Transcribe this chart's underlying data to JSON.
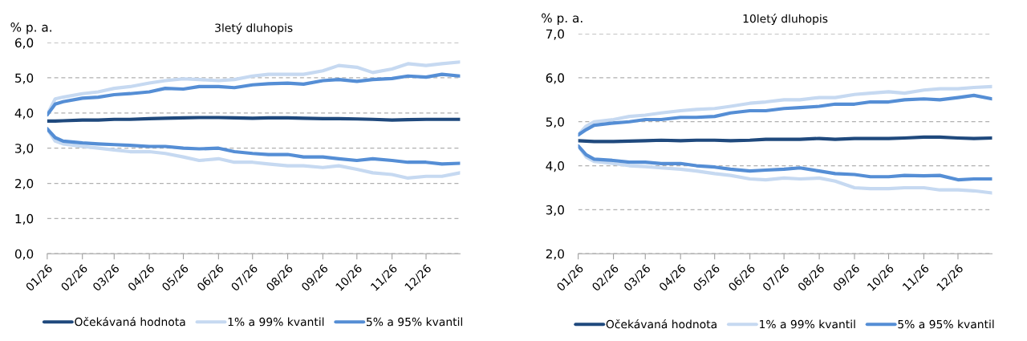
{
  "chart_data": [
    {
      "type": "line",
      "title": "3letý dluhopis",
      "ylabel": "% p. a.",
      "x": [
        "2026-01-01",
        "2026-01-08",
        "2026-01-15",
        "2026-02-01",
        "2026-02-15",
        "2026-03-01",
        "2026-03-15",
        "2026-04-01",
        "2026-04-15",
        "2026-05-01",
        "2026-05-15",
        "2026-06-01",
        "2026-06-15",
        "2026-07-01",
        "2026-07-15",
        "2026-08-01",
        "2026-08-15",
        "2026-09-01",
        "2026-09-15",
        "2026-10-01",
        "2026-10-15",
        "2026-11-01",
        "2026-11-15",
        "2026-12-01",
        "2026-12-15",
        "2026-12-31"
      ],
      "series": [
        {
          "name": "Očekávaná hodnota",
          "color": "#1f497d",
          "values": [
            3.77,
            3.77,
            3.78,
            3.8,
            3.8,
            3.82,
            3.82,
            3.84,
            3.85,
            3.86,
            3.87,
            3.87,
            3.86,
            3.85,
            3.86,
            3.86,
            3.85,
            3.84,
            3.84,
            3.83,
            3.82,
            3.8,
            3.81,
            3.82,
            3.82,
            3.82
          ]
        },
        {
          "name": "1% a 99% kvantil",
          "color": "#c6d9f1",
          "values": [
            3.95,
            4.4,
            4.45,
            4.55,
            4.6,
            4.7,
            4.75,
            4.85,
            4.92,
            4.97,
            4.95,
            4.92,
            4.95,
            5.05,
            5.1,
            5.1,
            5.1,
            5.2,
            5.35,
            5.3,
            5.15,
            5.25,
            5.4,
            5.35,
            5.4,
            5.45
          ]
        },
        {
          "color": "#c6d9f1",
          "values": [
            3.55,
            3.2,
            3.12,
            3.05,
            3.0,
            2.95,
            2.9,
            2.9,
            2.85,
            2.75,
            2.65,
            2.7,
            2.6,
            2.6,
            2.55,
            2.5,
            2.5,
            2.45,
            2.5,
            2.4,
            2.3,
            2.25,
            2.15,
            2.2,
            2.2,
            2.3
          ]
        },
        {
          "name": "5% a 95% kvantil",
          "color": "#558ed5",
          "values": [
            3.95,
            4.25,
            4.32,
            4.42,
            4.45,
            4.52,
            4.55,
            4.6,
            4.7,
            4.68,
            4.75,
            4.75,
            4.72,
            4.8,
            4.83,
            4.85,
            4.82,
            4.92,
            4.95,
            4.9,
            4.95,
            4.98,
            5.05,
            5.02,
            5.1,
            5.05
          ]
        },
        {
          "color": "#558ed5",
          "values": [
            3.55,
            3.3,
            3.2,
            3.15,
            3.12,
            3.1,
            3.08,
            3.05,
            3.05,
            3.0,
            2.98,
            3.0,
            2.9,
            2.85,
            2.82,
            2.82,
            2.75,
            2.75,
            2.7,
            2.65,
            2.7,
            2.65,
            2.6,
            2.6,
            2.55,
            2.57
          ]
        }
      ],
      "xlim": [
        "2026-01-01",
        "2026-12-31"
      ],
      "xticks": [
        {
          "value": "2026-01-01",
          "label": "01/26"
        },
        {
          "value": "2026-02-01",
          "label": "02/26"
        },
        {
          "value": "2026-03-01",
          "label": "03/26"
        },
        {
          "value": "2026-04-01",
          "label": "04/26"
        },
        {
          "value": "2026-05-01",
          "label": "05/26"
        },
        {
          "value": "2026-06-01",
          "label": "06/26"
        },
        {
          "value": "2026-07-01",
          "label": "07/26"
        },
        {
          "value": "2026-08-01",
          "label": "08/26"
        },
        {
          "value": "2026-09-01",
          "label": "09/26"
        },
        {
          "value": "2026-10-01",
          "label": "10/26"
        },
        {
          "value": "2026-11-01",
          "label": "11/26"
        },
        {
          "value": "2026-12-01",
          "label": "12/26"
        }
      ],
      "ylim": [
        0,
        6
      ],
      "yticks": [
        {
          "value": 0,
          "label": "0,0"
        },
        {
          "value": 1,
          "label": "1,0"
        },
        {
          "value": 2,
          "label": "2,0"
        },
        {
          "value": 3,
          "label": "3,0"
        },
        {
          "value": 4,
          "label": "4,0"
        },
        {
          "value": 5,
          "label": "5,0"
        },
        {
          "value": 6,
          "label": "6,0"
        }
      ],
      "grid": "y",
      "legend": "bottom",
      "marker": "none",
      "line_style": "solid"
    },
    {
      "type": "line",
      "title": "10letý dluhopis",
      "ylabel": "% p. a.",
      "x": [
        "2026-01-01",
        "2026-01-08",
        "2026-01-15",
        "2026-02-01",
        "2026-02-15",
        "2026-03-01",
        "2026-03-15",
        "2026-04-01",
        "2026-04-15",
        "2026-05-01",
        "2026-05-15",
        "2026-06-01",
        "2026-06-15",
        "2026-07-01",
        "2026-07-15",
        "2026-08-01",
        "2026-08-15",
        "2026-09-01",
        "2026-09-15",
        "2026-10-01",
        "2026-10-15",
        "2026-11-01",
        "2026-11-15",
        "2026-12-01",
        "2026-12-15",
        "2026-12-31"
      ],
      "series": [
        {
          "name": "Očekávaná hodnota",
          "color": "#1f497d",
          "values": [
            4.57,
            4.56,
            4.55,
            4.55,
            4.56,
            4.57,
            4.58,
            4.57,
            4.58,
            4.58,
            4.57,
            4.58,
            4.6,
            4.6,
            4.6,
            4.62,
            4.6,
            4.62,
            4.62,
            4.62,
            4.63,
            4.65,
            4.65,
            4.63,
            4.62,
            4.63
          ]
        },
        {
          "name": "1% a 99% kvantil",
          "color": "#c6d9f1",
          "values": [
            4.7,
            4.9,
            5.0,
            5.05,
            5.12,
            5.15,
            5.2,
            5.25,
            5.28,
            5.3,
            5.35,
            5.42,
            5.45,
            5.5,
            5.5,
            5.55,
            5.55,
            5.62,
            5.65,
            5.68,
            5.65,
            5.72,
            5.75,
            5.75,
            5.78,
            5.8
          ]
        },
        {
          "color": "#c6d9f1",
          "values": [
            4.45,
            4.2,
            4.1,
            4.05,
            4.0,
            3.98,
            3.95,
            3.92,
            3.88,
            3.82,
            3.78,
            3.7,
            3.68,
            3.72,
            3.7,
            3.72,
            3.65,
            3.5,
            3.48,
            3.48,
            3.5,
            3.5,
            3.45,
            3.45,
            3.43,
            3.38
          ]
        },
        {
          "name": "5% a 95% kvantil",
          "color": "#558ed5",
          "values": [
            4.7,
            4.82,
            4.92,
            4.97,
            5.0,
            5.05,
            5.05,
            5.1,
            5.1,
            5.12,
            5.2,
            5.25,
            5.25,
            5.3,
            5.32,
            5.35,
            5.4,
            5.4,
            5.45,
            5.45,
            5.5,
            5.52,
            5.5,
            5.55,
            5.6,
            5.52
          ]
        },
        {
          "color": "#558ed5",
          "values": [
            4.45,
            4.25,
            4.15,
            4.12,
            4.08,
            4.08,
            4.05,
            4.05,
            4.0,
            3.97,
            3.92,
            3.88,
            3.9,
            3.92,
            3.95,
            3.88,
            3.82,
            3.8,
            3.75,
            3.75,
            3.78,
            3.77,
            3.78,
            3.68,
            3.7,
            3.7
          ]
        }
      ],
      "xlim": [
        "2026-01-01",
        "2026-12-31"
      ],
      "xticks": [
        {
          "value": "2026-01-01",
          "label": "01/26"
        },
        {
          "value": "2026-02-01",
          "label": "02/26"
        },
        {
          "value": "2026-03-01",
          "label": "03/26"
        },
        {
          "value": "2026-04-01",
          "label": "04/26"
        },
        {
          "value": "2026-05-01",
          "label": "05/26"
        },
        {
          "value": "2026-06-01",
          "label": "06/26"
        },
        {
          "value": "2026-07-01",
          "label": "07/26"
        },
        {
          "value": "2026-08-01",
          "label": "08/26"
        },
        {
          "value": "2026-09-01",
          "label": "09/26"
        },
        {
          "value": "2026-10-01",
          "label": "10/26"
        },
        {
          "value": "2026-11-01",
          "label": "11/26"
        },
        {
          "value": "2026-12-01",
          "label": "12/26"
        }
      ],
      "ylim": [
        2,
        7
      ],
      "yticks": [
        {
          "value": 2,
          "label": "2,0"
        },
        {
          "value": 3,
          "label": "3,0"
        },
        {
          "value": 4,
          "label": "4,0"
        },
        {
          "value": 5,
          "label": "5,0"
        },
        {
          "value": 6,
          "label": "6,0"
        },
        {
          "value": 7,
          "label": "7,0"
        }
      ],
      "grid": "y",
      "legend": "bottom",
      "marker": "none",
      "line_style": "solid"
    }
  ]
}
